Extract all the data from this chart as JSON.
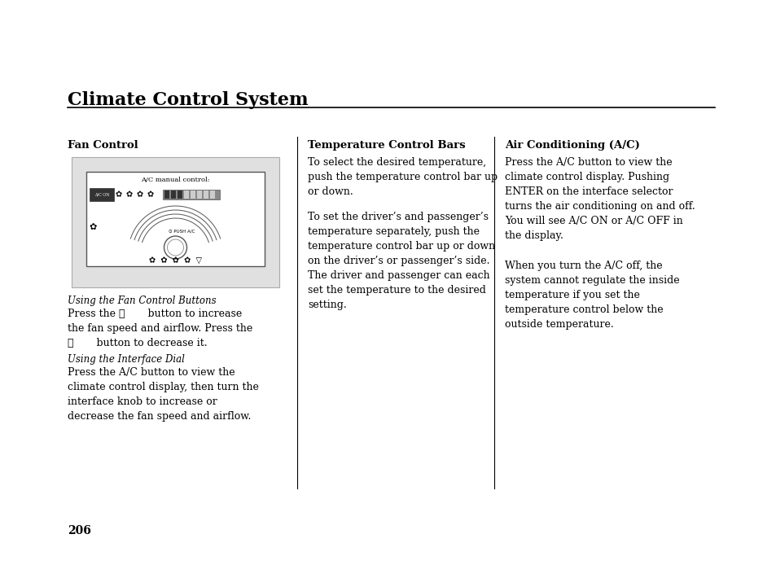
{
  "bg_color": "#ffffff",
  "page_title": "Climate Control System",
  "page_number": "206",
  "col1_header": "Fan Control",
  "col1_italic1": "Using the Fan Control Buttons",
  "col1_text1": "Press the ❖       button to increase\nthe fan speed and airflow. Press the\n❖       button to decrease it.",
  "col1_italic2": "Using the Interface Dial",
  "col1_text2": "Press the A/C button to view the\nclimate control display, then turn the\ninterface knob to increase or\ndecrease the fan speed and airflow.",
  "col2_header": "Temperature Control Bars",
  "col2_text1": "To select the desired temperature,\npush the temperature control bar up\nor down.",
  "col2_text2": "To set the driver’s and passenger’s\ntemperature separately, push the\ntemperature control bar up or down\non the driver’s or passenger’s side.\nThe driver and passenger can each\nset the temperature to the desired\nsetting.",
  "col3_header": "Air Conditioning (A/C)",
  "col3_text1": "Press the A/C button to view the\nclimate control display. Pushing\nENTER on the interface selector\nturns the air conditioning on and off.\nYou will see A/C ON or A/C OFF in\nthe display.",
  "col3_text2": "When you turn the A/C off, the\nsystem cannot regulate the inside\ntemperature if you set the\ntemperature control below the\noutside temperature.",
  "diagram_label": "A/C manual control:",
  "diagram_bg": "#e0e0e0",
  "diagram_inner_bg": "#ffffff",
  "col_divider_color": "#000000",
  "title_rule_color": "#000000",
  "font_color": "#000000"
}
